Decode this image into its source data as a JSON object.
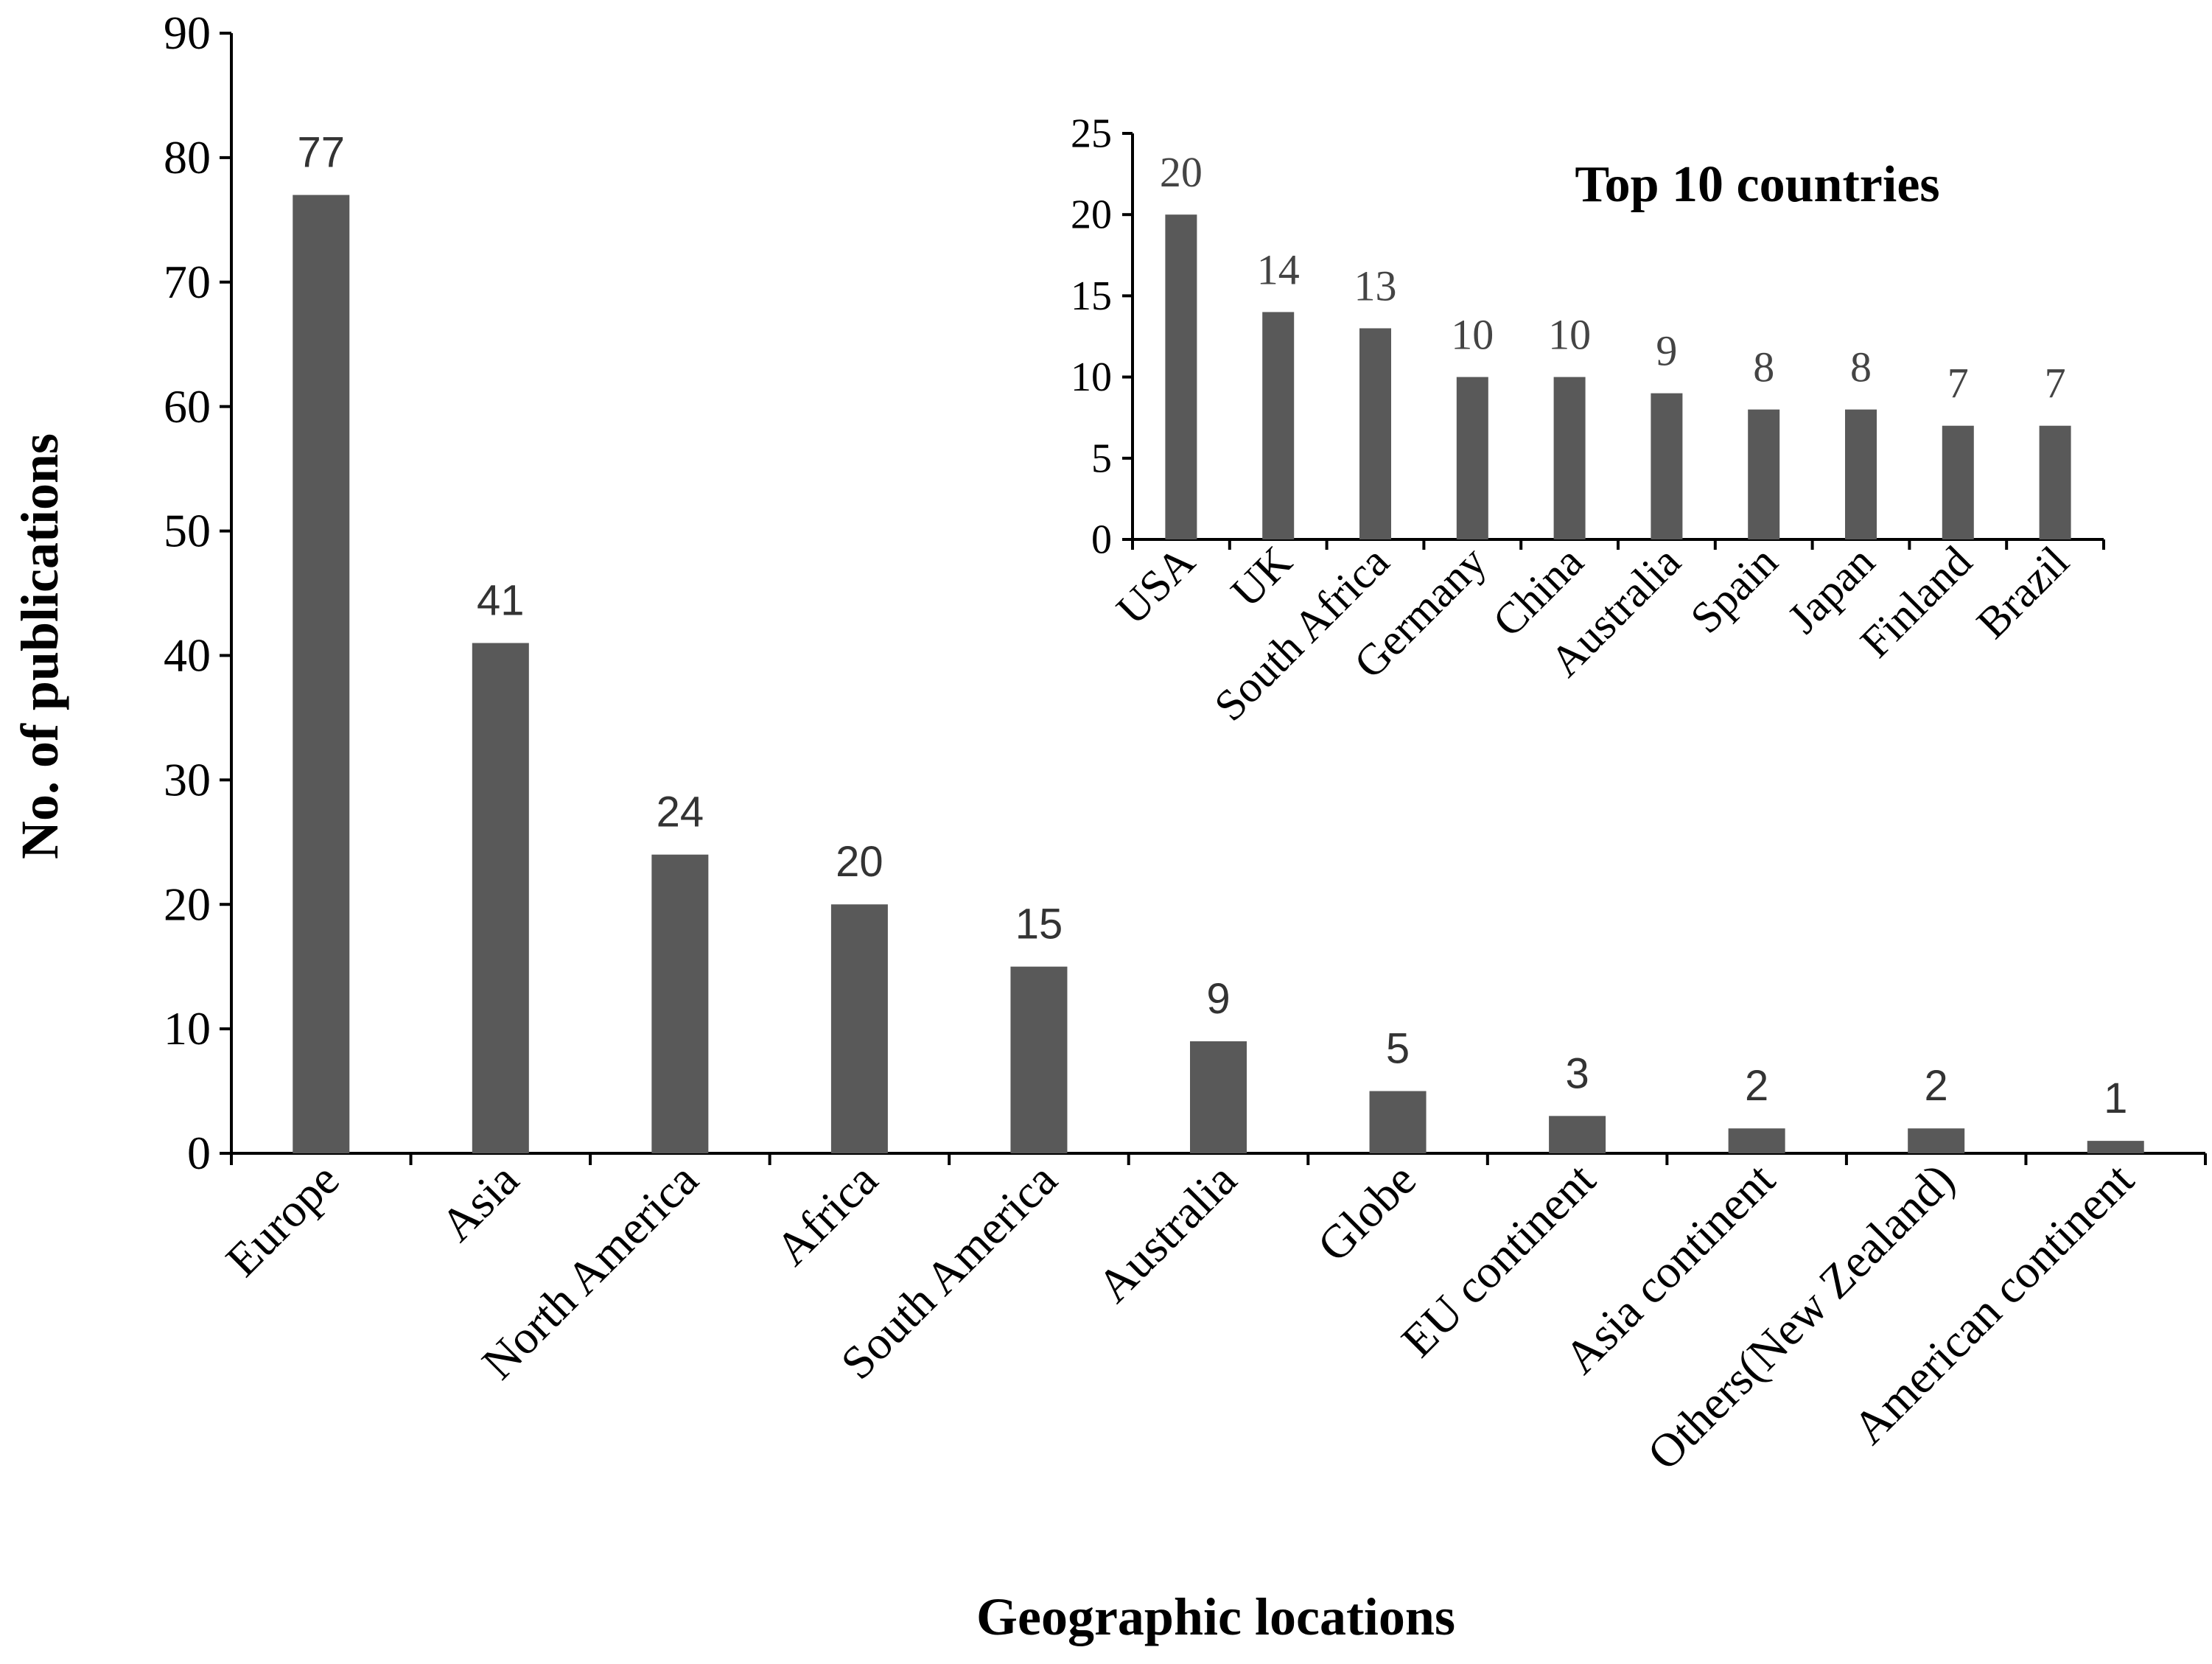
{
  "chart_data": [
    {
      "id": "main",
      "type": "bar",
      "title": "",
      "xlabel": "Geographic locations",
      "ylabel": "No. of publications",
      "ylim": [
        0,
        90
      ],
      "yticks": [
        0,
        10,
        20,
        30,
        40,
        50,
        60,
        70,
        80,
        90
      ],
      "grid": false,
      "legend": "none",
      "bar_color": "#595959",
      "categories": [
        "Europe",
        "Asia",
        "North America",
        "Africa",
        "South America",
        "Australia",
        "Globe",
        "EU continent",
        "Asia continent",
        "Others(New Zealand)",
        "American continent"
      ],
      "values": [
        77,
        41,
        24,
        20,
        15,
        9,
        5,
        3,
        2,
        2,
        1
      ],
      "data_labels": [
        "77",
        "41",
        "24",
        "20",
        "15",
        "9",
        "5",
        "3",
        "2",
        "2",
        "1"
      ]
    },
    {
      "id": "inset",
      "type": "bar",
      "title": "Top 10 countries",
      "xlabel": "",
      "ylabel": "",
      "ylim": [
        0,
        25
      ],
      "yticks": [
        0,
        5,
        10,
        15,
        20,
        25
      ],
      "grid": false,
      "legend": "none",
      "placement": "top-right",
      "bar_color": "#595959",
      "categories": [
        "USA",
        "UK",
        "South Africa",
        "Germany",
        "China",
        "Australia",
        "Spain",
        "Japan",
        "Finland",
        "Brazil"
      ],
      "values": [
        20,
        14,
        13,
        10,
        10,
        9,
        8,
        8,
        7,
        7
      ],
      "data_labels": [
        "20",
        "14",
        "13",
        "10",
        "10",
        "9",
        "8",
        "8",
        "7",
        "7"
      ]
    }
  ]
}
